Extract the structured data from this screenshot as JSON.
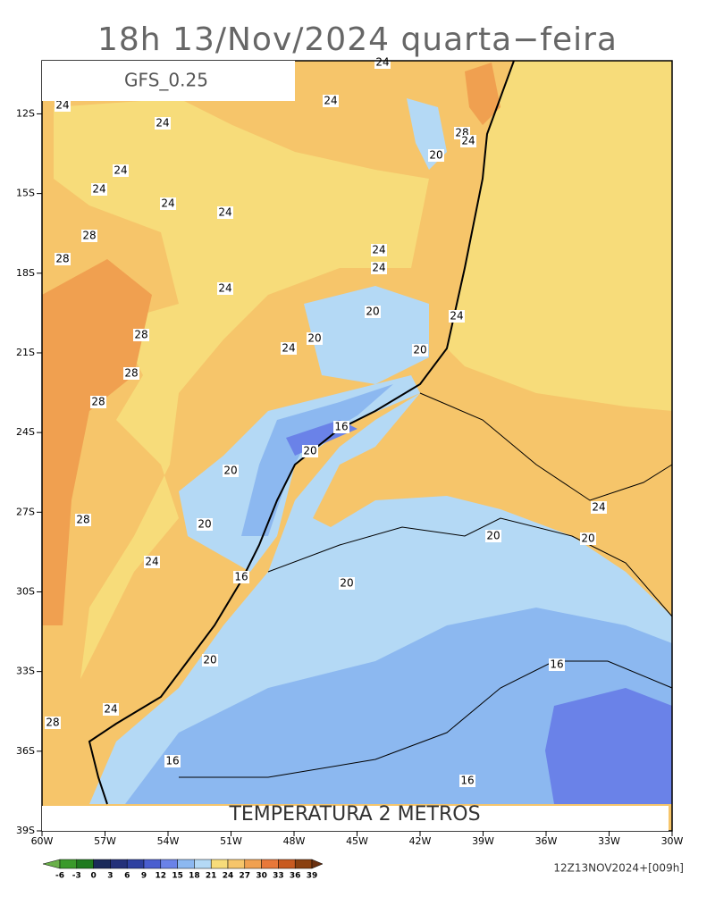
{
  "header": {
    "title": "18h 13/Nov/2024 quarta−feira",
    "model": "GFS_0.25"
  },
  "map": {
    "field_title": "TEMPERATURA 2 METROS",
    "axes": {
      "xlim": [
        -60,
        -30
      ],
      "ylim": [
        -39,
        -10
      ],
      "xticks": [
        {
          "value": -60,
          "label": "60W"
        },
        {
          "value": -57,
          "label": "57W"
        },
        {
          "value": -54,
          "label": "54W"
        },
        {
          "value": -51,
          "label": "51W"
        },
        {
          "value": -48,
          "label": "48W"
        },
        {
          "value": -45,
          "label": "45W"
        },
        {
          "value": -42,
          "label": "42W"
        },
        {
          "value": -39,
          "label": "39W"
        },
        {
          "value": -36,
          "label": "36W"
        },
        {
          "value": -33,
          "label": "33W"
        },
        {
          "value": -30,
          "label": "30W"
        }
      ],
      "yticks": [
        {
          "value": -12,
          "label": "12S"
        },
        {
          "value": -15,
          "label": "15S"
        },
        {
          "value": -18,
          "label": "18S"
        },
        {
          "value": -21,
          "label": "21S"
        },
        {
          "value": -24,
          "label": "24S"
        },
        {
          "value": -27,
          "label": "27S"
        },
        {
          "value": -30,
          "label": "30S"
        },
        {
          "value": -33,
          "label": "33S"
        },
        {
          "value": -36,
          "label": "36S"
        },
        {
          "value": -39,
          "label": "39S"
        }
      ]
    },
    "contour_labels": [
      24,
      24,
      24,
      24,
      24,
      24,
      24,
      24,
      28,
      24,
      20,
      28,
      28,
      24,
      24,
      24,
      20,
      24,
      28,
      20,
      24,
      20,
      28,
      28,
      16,
      20,
      20,
      24,
      28,
      20,
      20,
      20,
      24,
      16,
      20,
      20,
      16,
      24,
      28,
      16,
      16
    ]
  },
  "colorbar": {
    "levels": [
      -6,
      -3,
      0,
      3,
      6,
      9,
      12,
      15,
      18,
      21,
      24,
      27,
      30,
      33,
      36,
      39
    ],
    "colors": [
      "#6ab04a",
      "#3a9a2a",
      "#1f7a1f",
      "#1a2a5a",
      "#23307a",
      "#2e40a0",
      "#4a5ed0",
      "#6a82e8",
      "#8cb8f0",
      "#b4d9f5",
      "#f7dc7a",
      "#f6c56a",
      "#f0a050",
      "#e8783a",
      "#c85a20",
      "#8a4010",
      "#6a3010"
    ]
  },
  "run": "12Z13NOV2024+[009h]"
}
